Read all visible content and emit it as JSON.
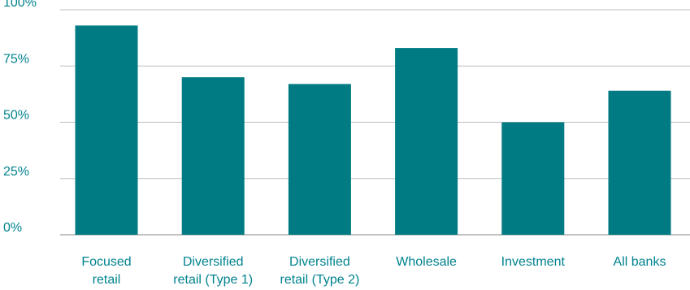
{
  "chart_data": {
    "type": "bar",
    "categories": [
      [
        "Focused",
        "retail"
      ],
      [
        "Diversified",
        "retail (Type 1)"
      ],
      [
        "Diversified",
        "retail (Type 2)"
      ],
      [
        "Wholesale"
      ],
      [
        "Investment"
      ],
      [
        "All banks"
      ]
    ],
    "values": [
      93,
      70,
      67,
      83,
      50,
      64
    ],
    "y_ticks": [
      "0%",
      "25%",
      "50%",
      "75%",
      "100%"
    ],
    "y_tick_values": [
      0,
      25,
      50,
      75,
      100
    ],
    "ylim": [
      0,
      100
    ],
    "grid": true,
    "title": "",
    "xlabel": "",
    "ylabel": "",
    "bar_color": "#007b83",
    "text_color": "#00838f",
    "grid_color": "#bdbdbd"
  }
}
